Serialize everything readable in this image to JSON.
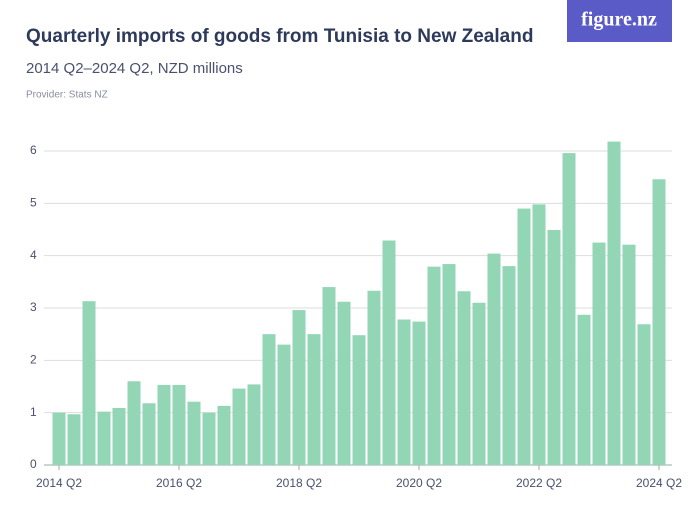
{
  "chart_data": {
    "type": "bar",
    "title": "Quarterly imports of goods from Tunisia to New Zealand",
    "subtitle": "2014 Q2–2024 Q2, NZD millions",
    "provider": "Provider: Stats NZ",
    "logo": "figure.nz",
    "categories": [
      "2014 Q2",
      null,
      null,
      null,
      null,
      null,
      null,
      null,
      "2016 Q2",
      null,
      null,
      null,
      null,
      null,
      null,
      null,
      "2018 Q2",
      null,
      null,
      null,
      null,
      null,
      null,
      null,
      "2020 Q2",
      null,
      null,
      null,
      null,
      null,
      null,
      null,
      "2022 Q2",
      null,
      null,
      null,
      null,
      null,
      null,
      null,
      "2024 Q2"
    ],
    "values": [
      1.0,
      0.97,
      3.13,
      1.02,
      1.09,
      1.6,
      1.18,
      1.53,
      1.53,
      1.21,
      1.0,
      1.13,
      1.46,
      1.54,
      2.5,
      2.3,
      2.96,
      2.5,
      3.4,
      3.12,
      2.48,
      3.33,
      4.29,
      2.78,
      2.74,
      3.79,
      3.84,
      3.32,
      3.1,
      4.04,
      3.8,
      4.9,
      4.98,
      4.49,
      5.96,
      2.87,
      4.25,
      6.18,
      4.21,
      2.69,
      5.46
    ],
    "color": "#93d6b5",
    "ylim": [
      0,
      6.3
    ],
    "yticks": [
      0,
      1,
      2,
      3,
      4,
      5,
      6
    ],
    "grid": true
  }
}
